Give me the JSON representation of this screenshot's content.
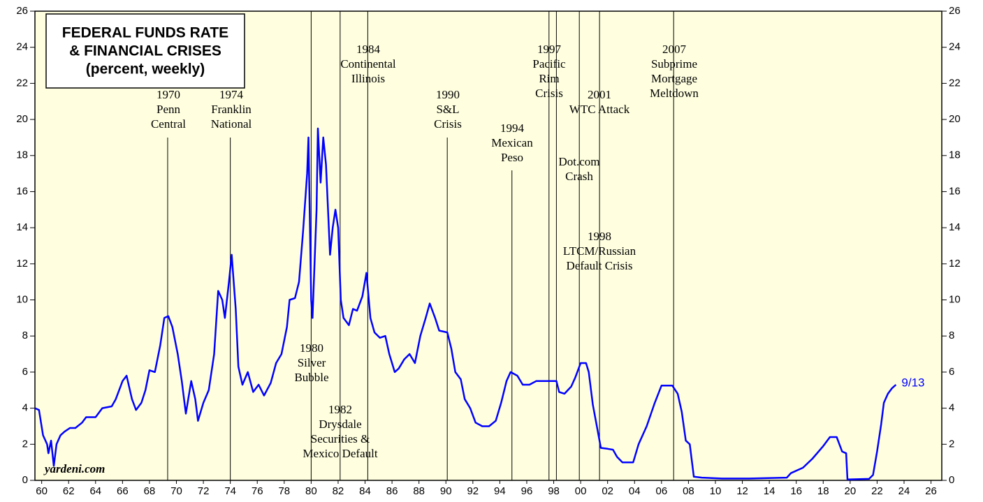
{
  "chart_data": {
    "type": "line",
    "title": [
      "FEDERAL FUNDS RATE",
      "& FINANCIAL CRISES",
      "(percent, weekly)"
    ],
    "source": "yardeni.com",
    "end_label": "9/13",
    "xlim": [
      1960,
      2027.3
    ],
    "ylim": [
      0,
      26
    ],
    "yticks": [
      0,
      2,
      4,
      6,
      8,
      10,
      12,
      14,
      16,
      18,
      20,
      22,
      24,
      26
    ],
    "xticks": [
      {
        "value": 1960.5,
        "label": "60"
      },
      {
        "value": 1962.5,
        "label": "62"
      },
      {
        "value": 1964.5,
        "label": "64"
      },
      {
        "value": 1966.5,
        "label": "66"
      },
      {
        "value": 1968.5,
        "label": "68"
      },
      {
        "value": 1970.5,
        "label": "70"
      },
      {
        "value": 1972.5,
        "label": "72"
      },
      {
        "value": 1974.5,
        "label": "74"
      },
      {
        "value": 1976.5,
        "label": "76"
      },
      {
        "value": 1978.5,
        "label": "78"
      },
      {
        "value": 1980.5,
        "label": "80"
      },
      {
        "value": 1982.5,
        "label": "82"
      },
      {
        "value": 1984.5,
        "label": "84"
      },
      {
        "value": 1986.5,
        "label": "86"
      },
      {
        "value": 1988.5,
        "label": "88"
      },
      {
        "value": 1990.5,
        "label": "90"
      },
      {
        "value": 1992.5,
        "label": "92"
      },
      {
        "value": 1994.5,
        "label": "94"
      },
      {
        "value": 1996.5,
        "label": "96"
      },
      {
        "value": 1998.5,
        "label": "98"
      },
      {
        "value": 2000.5,
        "label": "00"
      },
      {
        "value": 2002.5,
        "label": "02"
      },
      {
        "value": 2004.5,
        "label": "04"
      },
      {
        "value": 2006.5,
        "label": "06"
      },
      {
        "value": 2008.5,
        "label": "08"
      },
      {
        "value": 2010.5,
        "label": "10"
      },
      {
        "value": 2012.5,
        "label": "12"
      },
      {
        "value": 2014.5,
        "label": "14"
      },
      {
        "value": 2016.5,
        "label": "16"
      },
      {
        "value": 2018.5,
        "label": "18"
      },
      {
        "value": 2020.5,
        "label": "20"
      },
      {
        "value": 2022.5,
        "label": "22"
      },
      {
        "value": 2024.5,
        "label": "24"
      },
      {
        "value": 2026.5,
        "label": "26"
      }
    ],
    "color": "#0000ff",
    "x": [
      1960.0,
      1960.3,
      1960.6,
      1960.9,
      1961.0,
      1961.2,
      1961.4,
      1961.6,
      1961.9,
      1962.2,
      1962.6,
      1963.0,
      1963.5,
      1963.8,
      1964.5,
      1965.0,
      1965.7,
      1966.0,
      1966.5,
      1966.8,
      1967.2,
      1967.5,
      1967.9,
      1968.2,
      1968.5,
      1968.9,
      1969.3,
      1969.6,
      1969.9,
      1970.2,
      1970.6,
      1970.9,
      1971.2,
      1971.6,
      1971.9,
      1972.1,
      1972.5,
      1972.9,
      1973.3,
      1973.6,
      1973.9,
      1974.1,
      1974.4,
      1974.6,
      1974.9,
      1975.1,
      1975.4,
      1975.8,
      1976.2,
      1976.6,
      1977.0,
      1977.5,
      1977.9,
      1978.3,
      1978.7,
      1978.9,
      1979.3,
      1979.6,
      1979.9,
      1980.2,
      1980.3,
      1980.5,
      1980.6,
      1980.9,
      1981.0,
      1981.2,
      1981.4,
      1981.6,
      1981.9,
      1982.1,
      1982.3,
      1982.5,
      1982.7,
      1982.9,
      1983.3,
      1983.6,
      1983.9,
      1984.3,
      1984.6,
      1984.9,
      1985.2,
      1985.6,
      1986.0,
      1986.3,
      1986.7,
      1987.0,
      1987.4,
      1987.8,
      1988.2,
      1988.6,
      1989.0,
      1989.3,
      1989.7,
      1990.0,
      1990.6,
      1990.9,
      1991.2,
      1991.6,
      1991.9,
      1992.3,
      1992.7,
      1993.2,
      1993.7,
      1994.2,
      1994.6,
      1995.0,
      1995.3,
      1995.8,
      1996.2,
      1996.7,
      1997.2,
      1997.7,
      1998.2,
      1998.7,
      1998.9,
      1999.3,
      1999.8,
      2000.1,
      2000.5,
      2000.9,
      2001.1,
      2001.4,
      2001.7,
      2002.0,
      2002.5,
      2002.9,
      2003.2,
      2003.6,
      2004.4,
      2004.8,
      2005.4,
      2006.0,
      2006.5,
      2007.3,
      2007.7,
      2008.0,
      2008.3,
      2008.6,
      2008.9,
      2009.5,
      2011.0,
      2013.0,
      2015.8,
      2016.1,
      2017.0,
      2017.7,
      2018.5,
      2019.0,
      2019.5,
      2019.9,
      2020.2,
      2020.3,
      2021.9,
      2022.2,
      2022.5,
      2022.8,
      2023.0,
      2023.3,
      2023.6,
      2023.9
    ],
    "values": [
      4.0,
      3.9,
      2.5,
      2.0,
      1.5,
      2.2,
      0.8,
      2.0,
      2.5,
      2.7,
      2.9,
      2.9,
      3.2,
      3.5,
      3.5,
      4.0,
      4.1,
      4.5,
      5.5,
      5.8,
      4.5,
      3.9,
      4.3,
      5.0,
      6.1,
      6.0,
      7.5,
      9.0,
      9.1,
      8.5,
      7.0,
      5.5,
      3.7,
      5.5,
      4.5,
      3.3,
      4.3,
      5.0,
      7.0,
      10.5,
      10.0,
      9.0,
      11.0,
      12.5,
      9.5,
      6.3,
      5.3,
      6.0,
      4.9,
      5.3,
      4.7,
      5.4,
      6.5,
      7.0,
      8.5,
      10.0,
      10.1,
      11.0,
      13.8,
      17.0,
      19.0,
      10.0,
      9.0,
      15.0,
      19.5,
      16.5,
      19.0,
      17.5,
      12.5,
      14.0,
      15.0,
      14.0,
      10.0,
      9.0,
      8.6,
      9.5,
      9.4,
      10.2,
      11.5,
      9.0,
      8.2,
      7.9,
      8.0,
      7.0,
      6.0,
      6.2,
      6.7,
      7.0,
      6.5,
      8.0,
      9.0,
      9.8,
      9.0,
      8.3,
      8.2,
      7.3,
      6.0,
      5.6,
      4.5,
      4.0,
      3.2,
      3.0,
      3.0,
      3.3,
      4.3,
      5.5,
      6.0,
      5.8,
      5.3,
      5.3,
      5.5,
      5.5,
      5.5,
      5.5,
      4.9,
      4.8,
      5.2,
      5.7,
      6.5,
      6.5,
      6.0,
      4.2,
      3.0,
      1.8,
      1.75,
      1.7,
      1.3,
      1.0,
      1.0,
      2.0,
      3.0,
      4.3,
      5.25,
      5.25,
      4.8,
      3.8,
      2.2,
      2.0,
      0.2,
      0.15,
      0.1,
      0.1,
      0.15,
      0.4,
      0.7,
      1.2,
      1.9,
      2.4,
      2.4,
      1.6,
      1.5,
      0.05,
      0.08,
      0.3,
      1.6,
      3.1,
      4.3,
      4.8,
      5.1,
      5.3
    ],
    "annotations": [
      {
        "lines": [
          "1970",
          "Penn",
          "Central"
        ],
        "x": 1969.85
      },
      {
        "lines": [
          "1974",
          "Franklin",
          "National"
        ],
        "x": 1974.5
      },
      {
        "lines": [
          "1980",
          "Silver",
          "Bubble"
        ],
        "x": 1980.5
      },
      {
        "lines": [
          "1982",
          "Drysdale",
          "Securities &",
          "Mexico Default"
        ],
        "x": 1982.65
      },
      {
        "lines": [
          "1984",
          "Continental",
          "Illinois"
        ],
        "x": 1984.7
      },
      {
        "lines": [
          "1990",
          "S&L",
          "Crisis"
        ],
        "x": 1990.6
      },
      {
        "lines": [
          "1994",
          "Mexican",
          "Peso"
        ],
        "x": 1995.4
      },
      {
        "lines": [
          "1997",
          "Pacific",
          "Rim",
          "Crisis"
        ],
        "x": 1998.15
      },
      {
        "lines": [
          "1998",
          "LTCM/Russian",
          "Default Crisis"
        ],
        "x": 1998.7
      },
      {
        "lines": [
          "Dot.com",
          "Crash"
        ],
        "x": 2000.4
      },
      {
        "lines": [
          "2001",
          "WTC Attack"
        ],
        "x": 2001.9
      },
      {
        "lines": [
          "2007",
          "Subprime",
          "Mortgage",
          "Meltdown"
        ],
        "x": 2007.4
      }
    ]
  }
}
